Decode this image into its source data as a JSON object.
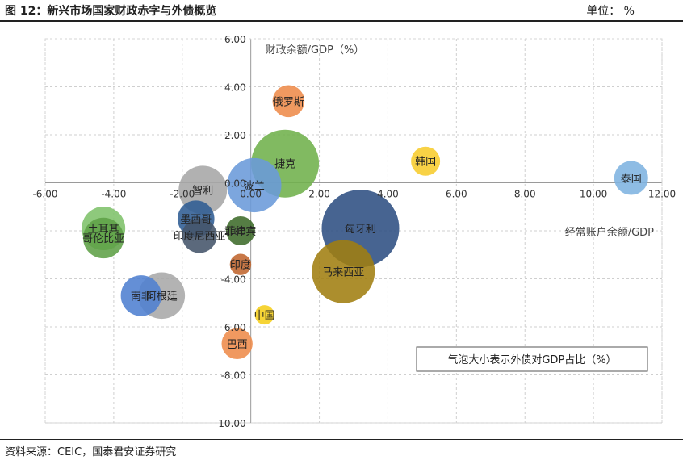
{
  "header": {
    "title": "图 12：新兴市场国家财政赤字与外债概览",
    "unit": "单位： %"
  },
  "footer": {
    "source": "资料来源：CEIC，国泰君安证券研究"
  },
  "chart_data": {
    "type": "bubble",
    "title": "",
    "xlabel": "经常账户余额/GDP",
    "ylabel": "财政余额/GDP（%）",
    "xlim": [
      -6,
      12
    ],
    "ylim": [
      -10,
      6
    ],
    "x_ticks": [
      "-6.00",
      "-4.00",
      "-2.00",
      "0.00",
      "2.00",
      "4.00",
      "6.00",
      "8.00",
      "10.00",
      "12.00"
    ],
    "y_ticks": [
      "6.00",
      "4.00",
      "2.00",
      "0.00",
      "-2.00",
      "-4.00",
      "-6.00",
      "-8.00",
      "-10.00"
    ],
    "grid": true,
    "legend_note": "气泡大小表示外债对GDP占比（%）",
    "series": [
      {
        "name": "泰国",
        "x": 11.1,
        "y": 0.2,
        "size": 35,
        "color": "#7EB3E0"
      },
      {
        "name": "韩国",
        "x": 5.1,
        "y": 0.9,
        "size": 30,
        "color": "#F7CC2C"
      },
      {
        "name": "俄罗斯",
        "x": 1.1,
        "y": 3.4,
        "size": 33,
        "color": "#EE8B4A"
      },
      {
        "name": "捷克",
        "x": 1.0,
        "y": 0.8,
        "size": 70,
        "color": "#6FB14B"
      },
      {
        "name": "智利",
        "x": -1.4,
        "y": -0.3,
        "size": 50,
        "color": "#A6A6A6"
      },
      {
        "name": "波兰",
        "x": 0.1,
        "y": -0.1,
        "size": 56,
        "color": "#6A9AD9"
      },
      {
        "name": "匈牙利",
        "x": 3.2,
        "y": -1.9,
        "size": 80,
        "color": "#2E4E82"
      },
      {
        "name": "马来西亚",
        "x": 2.7,
        "y": -3.7,
        "size": 65,
        "color": "#A07E10"
      },
      {
        "name": "墨西哥",
        "x": -1.6,
        "y": -1.5,
        "size": 38,
        "color": "#2F5C93"
      },
      {
        "name": "印度尼西亚",
        "x": -1.5,
        "y": -2.2,
        "size": 36,
        "color": "#44546A"
      },
      {
        "name": "菲律宾",
        "x": -0.3,
        "y": -2.0,
        "size": 30,
        "color": "#3D6B2A"
      },
      {
        "name": "印度",
        "x": -0.3,
        "y": -3.4,
        "size": 22,
        "color": "#C0652E"
      },
      {
        "name": "土耳其",
        "x": -4.3,
        "y": -1.9,
        "size": 45,
        "color": "#7EC16A"
      },
      {
        "name": "哥伦比亚",
        "x": -4.3,
        "y": -2.3,
        "size": 42,
        "color": "#5FA047"
      },
      {
        "name": "南非",
        "x": -3.2,
        "y": -4.7,
        "size": 42,
        "color": "#4E7FD0"
      },
      {
        "name": "阿根廷",
        "x": -2.6,
        "y": -4.7,
        "size": 48,
        "color": "#A8A8A8"
      },
      {
        "name": "中国",
        "x": 0.4,
        "y": -5.5,
        "size": 20,
        "color": "#F5CE1A"
      },
      {
        "name": "巴西",
        "x": -0.4,
        "y": -6.7,
        "size": 32,
        "color": "#EE8B4A"
      }
    ]
  }
}
